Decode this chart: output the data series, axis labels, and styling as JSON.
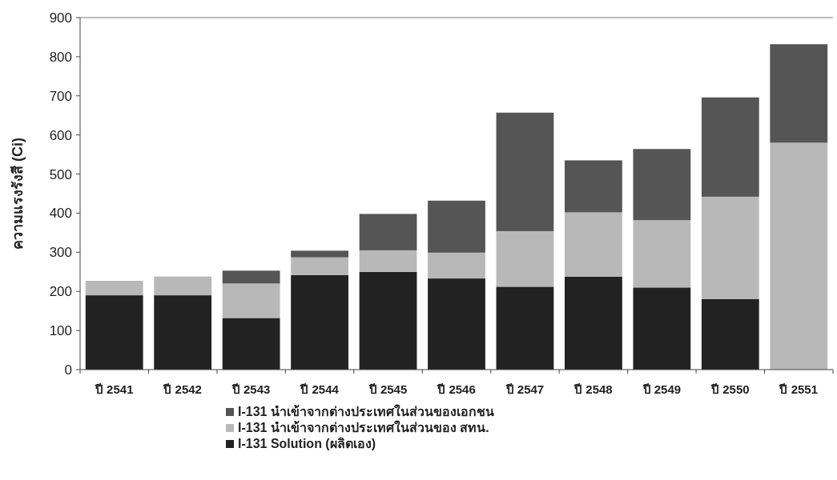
{
  "chart_data": {
    "type": "bar",
    "stacked": true,
    "ylabel": "ความแรงรังสี (Ci)",
    "categories": [
      "ปี 2541",
      "ปี 2542",
      "ปี 2543",
      "ปี 2544",
      "ปี 2545",
      "ปี 2546",
      "ปี 2547",
      "ปี 2548",
      "ปี 2549",
      "ปี 2550",
      "ปี 2551"
    ],
    "series": [
      {
        "name": "I-131 Solution  (ผลิตเอง)",
        "color": "#222222",
        "values": [
          190,
          190,
          132,
          242,
          250,
          233,
          212,
          238,
          210,
          180,
          0
        ]
      },
      {
        "name": "I-131 นำเข้าจากต่างประเทศในส่วนของ สทน.",
        "color": "#b8b8b8",
        "values": [
          37,
          48,
          88,
          45,
          55,
          66,
          142,
          164,
          172,
          262,
          580
        ]
      },
      {
        "name": "I-131 นำเข้าจากต่างประเทศในส่วนของเอกชน",
        "color": "#555555",
        "values": [
          0,
          0,
          33,
          17,
          93,
          133,
          303,
          133,
          182,
          254,
          252
        ]
      }
    ],
    "ylim": [
      0,
      900
    ],
    "yticks": [
      0,
      100,
      200,
      300,
      400,
      500,
      600,
      700,
      800,
      900
    ],
    "grid": false,
    "legend": "bottom"
  }
}
